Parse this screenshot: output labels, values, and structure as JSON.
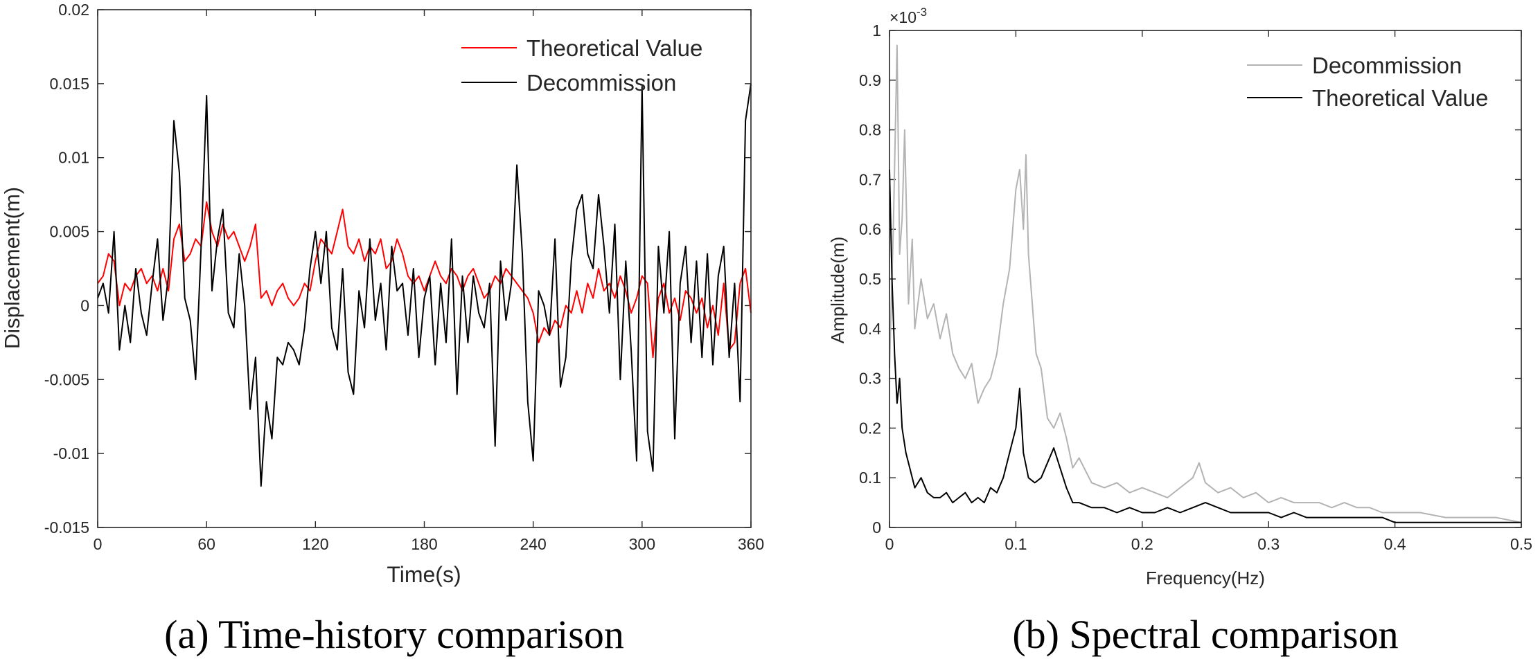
{
  "chart_data": [
    {
      "type": "line",
      "title": "",
      "caption": "(a) Time-history comparison",
      "xlabel": "Time(s)",
      "ylabel": "Displacement(m)",
      "xlim": [
        0,
        360
      ],
      "ylim": [
        -0.015,
        0.02
      ],
      "xticks": [
        0,
        60,
        120,
        180,
        240,
        300,
        360
      ],
      "xtick_labels": [
        "0",
        "60",
        "120",
        "180",
        "240",
        "300",
        "360"
      ],
      "yticks": [
        -0.015,
        -0.01,
        -0.005,
        0,
        0.005,
        0.01,
        0.015,
        0.02
      ],
      "ytick_labels": [
        "-0.015",
        "-0.01",
        "-0.005",
        "0",
        "0.005",
        "0.01",
        "0.015",
        "0.02"
      ],
      "legend_position": "top-right",
      "series": [
        {
          "name": "Theoretical Value",
          "color": "#ff0000",
          "x": [
            0,
            3,
            6,
            9,
            12,
            15,
            18,
            21,
            24,
            27,
            30,
            33,
            36,
            39,
            42,
            45,
            48,
            51,
            54,
            57,
            60,
            63,
            66,
            69,
            72,
            75,
            78,
            81,
            84,
            87,
            90,
            93,
            96,
            99,
            102,
            105,
            108,
            111,
            114,
            117,
            120,
            123,
            126,
            129,
            132,
            135,
            138,
            141,
            144,
            147,
            150,
            153,
            156,
            159,
            162,
            165,
            168,
            171,
            174,
            177,
            180,
            183,
            186,
            189,
            192,
            195,
            198,
            201,
            204,
            207,
            210,
            213,
            216,
            219,
            222,
            225,
            228,
            231,
            234,
            237,
            240,
            243,
            246,
            249,
            252,
            255,
            258,
            261,
            264,
            267,
            270,
            273,
            276,
            279,
            282,
            285,
            288,
            291,
            294,
            297,
            300,
            303,
            306,
            309,
            312,
            315,
            318,
            321,
            324,
            327,
            330,
            333,
            336,
            339,
            342,
            345,
            348,
            351,
            354,
            357,
            360
          ],
          "values": [
            0.0015,
            0.002,
            0.0035,
            0.003,
            0.0,
            0.0015,
            0.001,
            0.002,
            0.0025,
            0.0015,
            0.002,
            0.001,
            0.0025,
            0.001,
            0.0045,
            0.0055,
            0.003,
            0.0035,
            0.0045,
            0.004,
            0.007,
            0.005,
            0.004,
            0.0055,
            0.0045,
            0.005,
            0.004,
            0.003,
            0.004,
            0.0055,
            0.0005,
            0.001,
            0.0,
            0.001,
            0.0015,
            0.0005,
            0.0,
            0.0005,
            0.0015,
            0.001,
            0.003,
            0.0045,
            0.004,
            0.0035,
            0.005,
            0.0065,
            0.004,
            0.0035,
            0.0045,
            0.003,
            0.004,
            0.0035,
            0.0045,
            0.0025,
            0.003,
            0.0045,
            0.0035,
            0.002,
            0.0015,
            0.002,
            0.001,
            0.002,
            0.003,
            0.002,
            0.0015,
            0.0025,
            0.002,
            0.001,
            0.002,
            0.0025,
            0.0015,
            0.0005,
            0.001,
            0.002,
            0.0015,
            0.0025,
            0.002,
            0.0015,
            0.001,
            0.0005,
            -0.0005,
            -0.0025,
            -0.0015,
            -0.002,
            -0.001,
            -0.0015,
            0.0,
            -0.0005,
            0.001,
            -0.0005,
            0.0015,
            0.0005,
            0.0025,
            0.001,
            0.0015,
            0.0005,
            0.002,
            0.001,
            -0.0005,
            0.0005,
            0.002,
            0.0015,
            -0.0035,
            0.0005,
            0.0015,
            -0.0005,
            0.0005,
            -0.001,
            0.001,
            0.0005,
            -0.0005,
            0.0005,
            -0.0015,
            0.0,
            -0.002,
            0.0015,
            -0.003,
            -0.0025,
            0.0015,
            0.0025,
            -0.0005
          ]
        },
        {
          "name": "Decommission",
          "color": "#000000",
          "x": [
            0,
            3,
            6,
            9,
            12,
            15,
            18,
            21,
            24,
            27,
            30,
            33,
            36,
            39,
            42,
            45,
            48,
            51,
            54,
            57,
            60,
            63,
            66,
            69,
            72,
            75,
            78,
            81,
            84,
            87,
            90,
            93,
            96,
            99,
            102,
            105,
            108,
            111,
            114,
            117,
            120,
            123,
            126,
            129,
            132,
            135,
            138,
            141,
            144,
            147,
            150,
            153,
            156,
            159,
            162,
            165,
            168,
            171,
            174,
            177,
            180,
            183,
            186,
            189,
            192,
            195,
            198,
            201,
            204,
            207,
            210,
            213,
            216,
            219,
            222,
            225,
            228,
            231,
            234,
            237,
            240,
            243,
            246,
            249,
            252,
            255,
            258,
            261,
            264,
            267,
            270,
            273,
            276,
            279,
            282,
            285,
            288,
            291,
            294,
            297,
            300,
            303,
            306,
            309,
            312,
            315,
            318,
            321,
            324,
            327,
            330,
            333,
            336,
            339,
            342,
            345,
            348,
            351,
            354,
            357,
            360
          ],
          "values": [
            0.0005,
            0.0015,
            -0.0005,
            0.005,
            -0.003,
            0.0,
            -0.0025,
            0.0025,
            -0.0005,
            -0.002,
            0.0015,
            0.0045,
            -0.001,
            0.002,
            0.0125,
            0.009,
            0.0005,
            -0.001,
            -0.005,
            0.004,
            0.0142,
            0.001,
            0.0045,
            0.0065,
            -0.0005,
            -0.0015,
            0.0035,
            0.0,
            -0.007,
            -0.0035,
            -0.0122,
            -0.0065,
            -0.009,
            -0.0035,
            -0.004,
            -0.0025,
            -0.003,
            -0.004,
            -0.0015,
            0.0025,
            0.005,
            0.0015,
            0.005,
            -0.0015,
            -0.003,
            0.0025,
            -0.0045,
            -0.006,
            0.001,
            -0.0015,
            0.0045,
            -0.001,
            0.0015,
            -0.003,
            0.004,
            0.001,
            0.0015,
            -0.002,
            0.0025,
            -0.0035,
            0.0005,
            0.002,
            -0.004,
            0.0015,
            -0.0025,
            0.0045,
            -0.006,
            0.002,
            -0.0025,
            0.002,
            -0.0005,
            -0.0015,
            0.0015,
            -0.0095,
            0.003,
            -0.001,
            0.0015,
            0.0095,
            0.0035,
            -0.0065,
            -0.0105,
            0.001,
            0.0,
            -0.002,
            0.0045,
            -0.0055,
            -0.0035,
            0.003,
            0.0065,
            0.0075,
            0.0035,
            0.0025,
            0.0075,
            0.004,
            -0.0005,
            0.0055,
            -0.005,
            0.003,
            -0.003,
            -0.0105,
            0.0148,
            -0.0085,
            -0.0112,
            0.004,
            -0.0005,
            0.005,
            -0.009,
            0.0015,
            0.004,
            -0.0025,
            0.003,
            -0.0035,
            0.0035,
            -0.004,
            0.002,
            0.004,
            -0.0035,
            0.0015,
            -0.0065,
            0.0125,
            0.015
          ]
        }
      ]
    },
    {
      "type": "line",
      "title": "",
      "caption": "(b) Spectral comparison",
      "xlabel": "Frequency(Hz)",
      "ylabel": "Amplitude(m)",
      "y_multiplier_label": "×10",
      "y_multiplier_exponent": "-3",
      "y_scale": 0.001,
      "xlim": [
        0,
        0.5
      ],
      "ylim": [
        0,
        1
      ],
      "xticks": [
        0,
        0.1,
        0.2,
        0.3,
        0.4,
        0.5
      ],
      "xtick_labels": [
        "0",
        "0.1",
        "0.2",
        "0.3",
        "0.4",
        "0.5"
      ],
      "yticks": [
        0,
        0.1,
        0.2,
        0.3,
        0.4,
        0.5,
        0.6,
        0.7,
        0.8,
        0.9,
        1
      ],
      "ytick_labels": [
        "0",
        "0.1",
        "0.2",
        "0.3",
        "0.4",
        "0.5",
        "0.6",
        "0.7",
        "0.8",
        "0.9",
        "1"
      ],
      "legend_position": "top-right",
      "series": [
        {
          "name": "Decommission",
          "color": "#b3b3b3",
          "x": [
            0.0,
            0.003,
            0.006,
            0.008,
            0.01,
            0.012,
            0.015,
            0.018,
            0.02,
            0.025,
            0.03,
            0.035,
            0.04,
            0.045,
            0.05,
            0.055,
            0.06,
            0.065,
            0.07,
            0.075,
            0.08,
            0.085,
            0.09,
            0.095,
            0.1,
            0.103,
            0.106,
            0.108,
            0.11,
            0.113,
            0.116,
            0.12,
            0.125,
            0.13,
            0.135,
            0.14,
            0.145,
            0.15,
            0.16,
            0.17,
            0.18,
            0.19,
            0.2,
            0.21,
            0.22,
            0.23,
            0.24,
            0.245,
            0.25,
            0.26,
            0.27,
            0.28,
            0.29,
            0.3,
            0.31,
            0.32,
            0.33,
            0.34,
            0.35,
            0.36,
            0.37,
            0.38,
            0.39,
            0.4,
            0.42,
            0.44,
            0.46,
            0.48,
            0.5
          ],
          "values": [
            0.32,
            0.6,
            0.97,
            0.55,
            0.62,
            0.8,
            0.45,
            0.58,
            0.4,
            0.5,
            0.42,
            0.45,
            0.38,
            0.43,
            0.35,
            0.32,
            0.3,
            0.33,
            0.25,
            0.28,
            0.3,
            0.35,
            0.45,
            0.52,
            0.68,
            0.72,
            0.6,
            0.75,
            0.55,
            0.45,
            0.35,
            0.32,
            0.22,
            0.2,
            0.23,
            0.18,
            0.12,
            0.14,
            0.09,
            0.08,
            0.09,
            0.07,
            0.08,
            0.07,
            0.06,
            0.08,
            0.1,
            0.13,
            0.09,
            0.07,
            0.08,
            0.06,
            0.07,
            0.05,
            0.06,
            0.05,
            0.05,
            0.05,
            0.04,
            0.05,
            0.04,
            0.04,
            0.03,
            0.03,
            0.03,
            0.02,
            0.02,
            0.02,
            0.01
          ]
        },
        {
          "name": "Theoretical Value",
          "color": "#000000",
          "x": [
            0.0,
            0.002,
            0.004,
            0.006,
            0.008,
            0.01,
            0.013,
            0.016,
            0.02,
            0.025,
            0.03,
            0.035,
            0.04,
            0.045,
            0.05,
            0.055,
            0.06,
            0.065,
            0.07,
            0.075,
            0.08,
            0.085,
            0.09,
            0.095,
            0.1,
            0.103,
            0.106,
            0.11,
            0.115,
            0.12,
            0.125,
            0.13,
            0.135,
            0.14,
            0.145,
            0.15,
            0.16,
            0.17,
            0.18,
            0.19,
            0.2,
            0.21,
            0.22,
            0.23,
            0.24,
            0.25,
            0.26,
            0.27,
            0.28,
            0.29,
            0.3,
            0.31,
            0.32,
            0.33,
            0.34,
            0.35,
            0.36,
            0.37,
            0.38,
            0.39,
            0.4,
            0.42,
            0.44,
            0.46,
            0.48,
            0.5
          ],
          "values": [
            0.72,
            0.5,
            0.35,
            0.25,
            0.3,
            0.2,
            0.15,
            0.12,
            0.08,
            0.1,
            0.07,
            0.06,
            0.06,
            0.07,
            0.05,
            0.06,
            0.07,
            0.05,
            0.06,
            0.05,
            0.08,
            0.07,
            0.1,
            0.15,
            0.2,
            0.28,
            0.15,
            0.1,
            0.09,
            0.1,
            0.13,
            0.16,
            0.12,
            0.08,
            0.05,
            0.05,
            0.04,
            0.04,
            0.03,
            0.04,
            0.03,
            0.03,
            0.04,
            0.03,
            0.04,
            0.05,
            0.04,
            0.03,
            0.03,
            0.03,
            0.03,
            0.02,
            0.03,
            0.02,
            0.02,
            0.02,
            0.02,
            0.02,
            0.02,
            0.02,
            0.01,
            0.01,
            0.01,
            0.01,
            0.01,
            0.01
          ]
        }
      ]
    }
  ]
}
